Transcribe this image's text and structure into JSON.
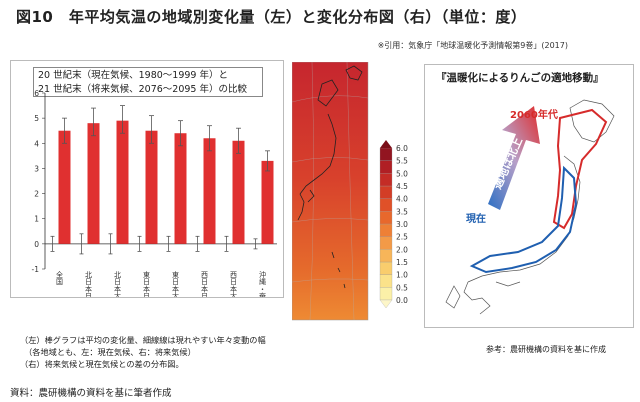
{
  "title": "図10　年平均気温の地域別変化量（左）と変化分布図（右）（単位：度）",
  "citation": "※引用：気象庁「地球温暖化予測情報第9巻」(2017)",
  "legend": {
    "line1": "20 世紀末（現在気候、1980～1999 年）と",
    "line2": "21 世紀末（将来気候、2076～2095 年）の比較"
  },
  "chart_data": {
    "type": "bar",
    "categories": [
      "全国",
      "北日本日本海側",
      "北日本太平洋側",
      "東日本日本海側",
      "東日本太平洋側",
      "西日本日本海側",
      "西日本太平洋側",
      "沖縄・奄美"
    ],
    "values": [
      4.5,
      4.8,
      4.9,
      4.5,
      4.4,
      4.2,
      4.1,
      3.3
    ],
    "error_high": [
      5.0,
      5.4,
      5.5,
      5.1,
      4.9,
      4.7,
      4.6,
      3.7
    ],
    "error_low": [
      4.0,
      4.3,
      4.4,
      4.0,
      3.9,
      3.7,
      3.6,
      2.9
    ],
    "present_high": [
      0.3,
      0.4,
      0.4,
      0.3,
      0.3,
      0.3,
      0.3,
      0.2
    ],
    "present_low": [
      -0.3,
      -0.4,
      -0.4,
      -0.3,
      -0.3,
      -0.3,
      -0.3,
      -0.2
    ],
    "yticks": [
      "-1",
      "0",
      "1",
      "2",
      "3",
      "4",
      "5",
      "6"
    ],
    "ylim": [
      -1,
      6
    ],
    "colorbar_ticks": [
      "0.0",
      "0.5",
      "1.0",
      "1.5",
      "2.0",
      "2.5",
      "3.0",
      "3.5",
      "4.0",
      "4.5",
      "5.0",
      "5.5",
      "6.0"
    ],
    "colors": {
      "bar": "#e03030",
      "whisker": "#555555",
      "map_base": "#d84a2e"
    }
  },
  "apple": {
    "title": "『温暖化によるりんごの適地移動』",
    "future_label": "2060年代",
    "present_label": "現在",
    "arrow_label": "適地は北上",
    "ref": "参考：農研機構の資料を基に作成",
    "colors": {
      "future": "#d62b2b",
      "present": "#1f5fb0"
    }
  },
  "notes": [
    "（左）棒グラフは平均の変化量、細線線は現れやすい年々変動の幅",
    "　（各地域とも、左：現在気候、右：将来気候）",
    "（右）将来気候と現在気候との差の分布図。"
  ],
  "source": "資料：農研機構の資料を基に筆者作成"
}
